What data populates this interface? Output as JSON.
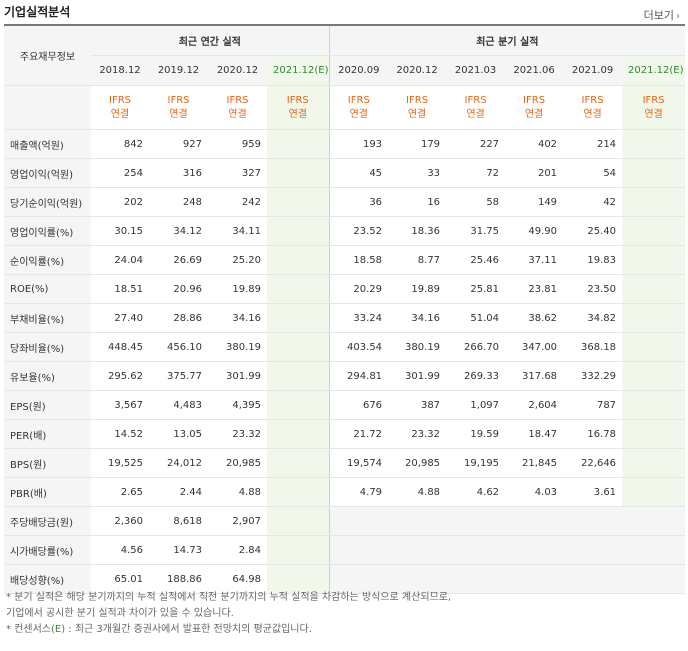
{
  "header": {
    "title": "기업실적분석",
    "more_label": "더보기"
  },
  "table": {
    "corner_label": "주요재무정보",
    "annual_group_label": "최근 연간 실적",
    "quarter_group_label": "최근 분기 실적",
    "annual_dates": [
      "2018.12",
      "2019.12",
      "2020.12",
      "2021.12(E)"
    ],
    "quarter_dates": [
      "2020.09",
      "2020.12",
      "2021.03",
      "2021.06",
      "2021.09",
      "2021.12(E)"
    ],
    "ifrs_line1": "IFRS",
    "ifrs_line2": "연결",
    "rows": [
      {
        "label": "매출액(억원)",
        "annual": [
          "842",
          "927",
          "959",
          ""
        ],
        "quarter": [
          "193",
          "179",
          "227",
          "402",
          "214",
          ""
        ]
      },
      {
        "label": "영업이익(억원)",
        "annual": [
          "254",
          "316",
          "327",
          ""
        ],
        "quarter": [
          "45",
          "33",
          "72",
          "201",
          "54",
          ""
        ]
      },
      {
        "label": "당기순이익(억원)",
        "annual": [
          "202",
          "248",
          "242",
          ""
        ],
        "quarter": [
          "36",
          "16",
          "58",
          "149",
          "42",
          ""
        ]
      },
      {
        "label": "영업이익률(%)",
        "annual": [
          "30.15",
          "34.12",
          "34.11",
          ""
        ],
        "quarter": [
          "23.52",
          "18.36",
          "31.75",
          "49.90",
          "25.40",
          ""
        ]
      },
      {
        "label": "순이익률(%)",
        "annual": [
          "24.04",
          "26.69",
          "25.20",
          ""
        ],
        "quarter": [
          "18.58",
          "8.77",
          "25.46",
          "37.11",
          "19.83",
          ""
        ]
      },
      {
        "label": "ROE(%)",
        "annual": [
          "18.51",
          "20.96",
          "19.89",
          ""
        ],
        "quarter": [
          "20.29",
          "19.89",
          "25.81",
          "23.81",
          "23.50",
          ""
        ]
      },
      {
        "label": "부채비율(%)",
        "annual": [
          "27.40",
          "28.86",
          "34.16",
          ""
        ],
        "quarter": [
          "33.24",
          "34.16",
          "51.04",
          "38.62",
          "34.82",
          ""
        ]
      },
      {
        "label": "당좌비율(%)",
        "annual": [
          "448.45",
          "456.10",
          "380.19",
          ""
        ],
        "quarter": [
          "403.54",
          "380.19",
          "266.70",
          "347.00",
          "368.18",
          ""
        ]
      },
      {
        "label": "유보율(%)",
        "annual": [
          "295.62",
          "375.77",
          "301.99",
          ""
        ],
        "quarter": [
          "294.81",
          "301.99",
          "269.33",
          "317.68",
          "332.29",
          ""
        ]
      },
      {
        "label": "EPS(원)",
        "annual": [
          "3,567",
          "4,483",
          "4,395",
          ""
        ],
        "quarter": [
          "676",
          "387",
          "1,097",
          "2,604",
          "787",
          ""
        ]
      },
      {
        "label": "PER(배)",
        "annual": [
          "14.52",
          "13.05",
          "23.32",
          ""
        ],
        "quarter": [
          "21.72",
          "23.32",
          "19.59",
          "18.47",
          "16.78",
          ""
        ]
      },
      {
        "label": "BPS(원)",
        "annual": [
          "19,525",
          "24,012",
          "20,985",
          ""
        ],
        "quarter": [
          "19,574",
          "20,985",
          "19,195",
          "21,845",
          "22,646",
          ""
        ]
      },
      {
        "label": "PBR(배)",
        "annual": [
          "2.65",
          "2.44",
          "4.88",
          ""
        ],
        "quarter": [
          "4.79",
          "4.88",
          "4.62",
          "4.03",
          "3.61",
          ""
        ]
      },
      {
        "label": "주당배당금(원)",
        "annual": [
          "2,360",
          "8,618",
          "2,907",
          ""
        ],
        "quarter": null
      },
      {
        "label": "시가배당률(%)",
        "annual": [
          "4.56",
          "14.73",
          "2.84",
          ""
        ],
        "quarter": null
      },
      {
        "label": "배당성향(%)",
        "annual": [
          "65.01",
          "188.86",
          "64.98",
          ""
        ],
        "quarter": null
      }
    ]
  },
  "notes": {
    "line1": "* 분기 실적은 해당 분기까지의 누적 실적에서 직전 분기까지의 누적 실적을 차감하는 방식으로 계산되므로,",
    "line2": "   기업에서 공시한 분기 실적과 차이가 있을 수 있습니다.",
    "line3_prefix": "* 컨센서스(",
    "line3_e": "E",
    "line3_suffix": ") : 최근 3개월간 증권사에서 발표한 전망치의 평균값입니다."
  },
  "colors": {
    "ifrs": "#e8650e",
    "estimate": "#2d8c2d",
    "estimate_bg": "#f1f7ea"
  }
}
